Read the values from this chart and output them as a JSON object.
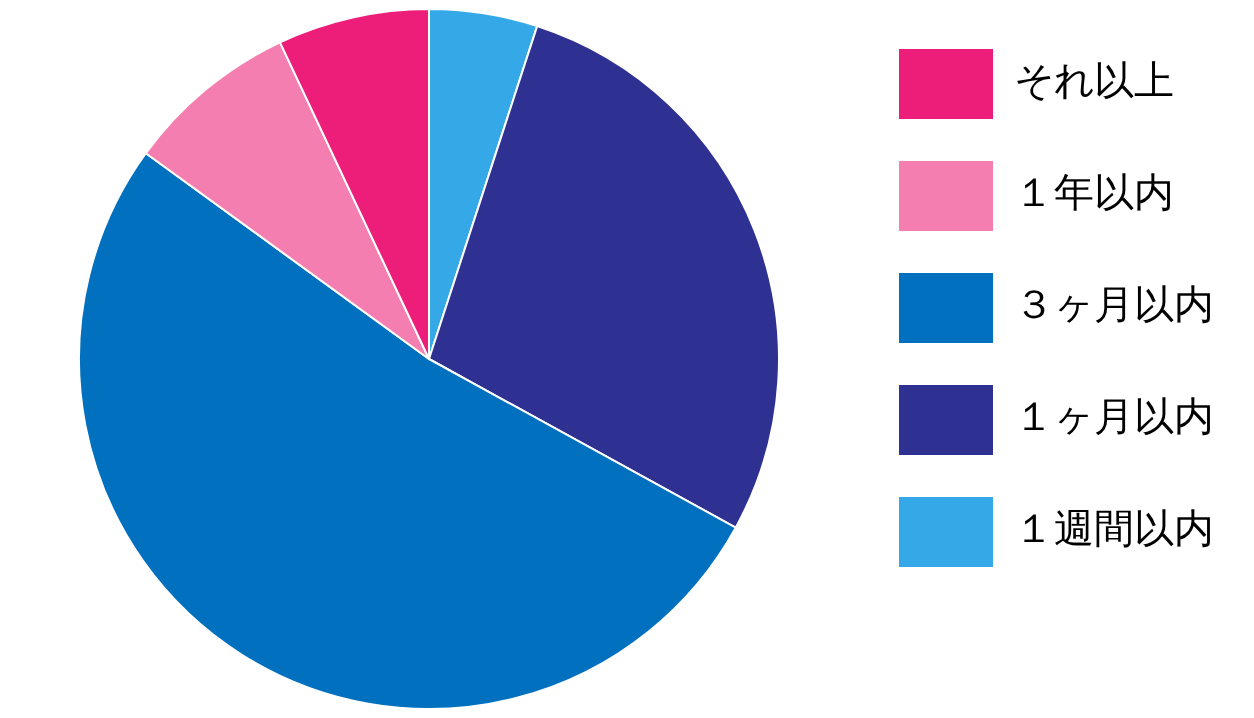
{
  "chart_data": {
    "type": "pie",
    "categories": [
      "１週間以内",
      "１ヶ月以内",
      "３ヶ月以内",
      "１年以内",
      "それ以上"
    ],
    "values": [
      5,
      28,
      52,
      8,
      7
    ],
    "colors": [
      "#35a8e8",
      "#2e3191",
      "#0070bf",
      "#f57eb0",
      "#ec1e79"
    ],
    "legend": "right"
  }
}
